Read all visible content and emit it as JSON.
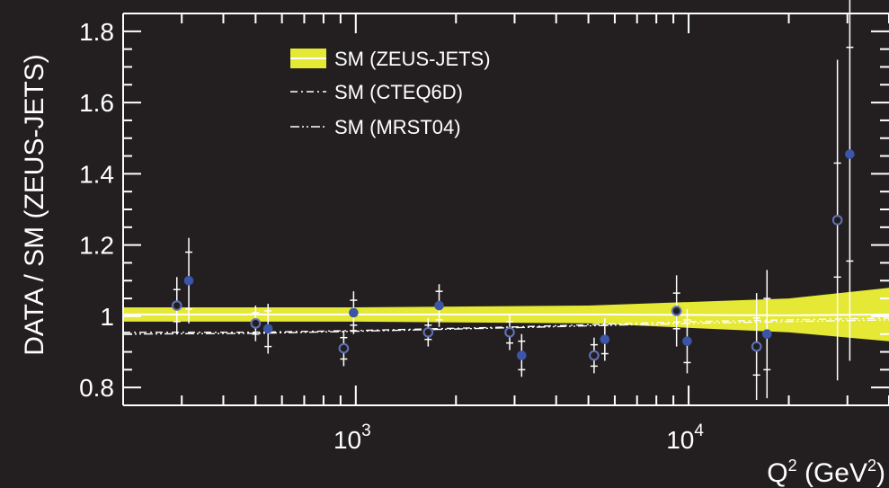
{
  "colors": {
    "background": "#231f20",
    "band": "#e5e834",
    "axes": "#ffffff",
    "filled_marker": "#3b55a8",
    "open_marker_edge": "#6272b8"
  },
  "chart_data": {
    "type": "scatter",
    "xlabel": {
      "base": "Q",
      "sup1": "2",
      "mid": " (GeV",
      "sup2": "2",
      "end": ")"
    },
    "ylabel": "DATA / SM (ZEUS-JETS)",
    "x_scale": "log",
    "xlim": [
      200,
      40000
    ],
    "ylim": [
      0.75,
      1.85
    ],
    "x_ticks": [
      {
        "value": 1000,
        "base": "10",
        "exp": "3"
      },
      {
        "value": 10000,
        "base": "10",
        "exp": "4"
      }
    ],
    "y_ticks": [
      {
        "value": 0.8,
        "label": "0.8"
      },
      {
        "value": 1.0,
        "label": "1"
      },
      {
        "value": 1.2,
        "label": "1.2"
      },
      {
        "value": 1.4,
        "label": "1.4"
      },
      {
        "value": 1.6,
        "label": "1.6"
      },
      {
        "value": 1.8,
        "label": "1.8"
      }
    ],
    "legend": {
      "position": "top-left",
      "entries": [
        {
          "label": "SM (ZEUS-JETS)",
          "style": "band"
        },
        {
          "label": "SM (CTEQ6D)",
          "style": "dash-dot"
        },
        {
          "label": "SM (MRST04)",
          "style": "dash-dot-dot"
        }
      ]
    },
    "band": {
      "x": [
        200,
        1000,
        5000,
        20000,
        40000
      ],
      "upper": [
        1.025,
        1.025,
        1.03,
        1.05,
        1.08
      ],
      "lower": [
        0.985,
        0.985,
        0.98,
        0.955,
        0.93
      ]
    },
    "lines": [
      {
        "style": "dash-dot",
        "x": [
          200,
          500,
          1000,
          3000,
          10000,
          40000
        ],
        "y": [
          0.955,
          0.955,
          0.96,
          0.97,
          0.985,
          0.995
        ]
      },
      {
        "style": "dash-dot-dot",
        "x": [
          200,
          500,
          1000,
          3000,
          10000,
          40000
        ],
        "y": [
          0.95,
          0.952,
          0.958,
          0.968,
          0.98,
          0.99
        ]
      }
    ],
    "series": [
      {
        "marker": "open",
        "points": [
          {
            "x": 290,
            "y": 1.03,
            "stat": 0.045,
            "tot": 0.08
          },
          {
            "x": 500,
            "y": 0.98,
            "stat": 0.03,
            "tot": 0.05
          },
          {
            "x": 920,
            "y": 0.91,
            "stat": 0.03,
            "tot": 0.05
          },
          {
            "x": 1650,
            "y": 0.955,
            "stat": 0.02,
            "tot": 0.04
          },
          {
            "x": 2900,
            "y": 0.955,
            "stat": 0.03,
            "tot": 0.05
          },
          {
            "x": 5200,
            "y": 0.89,
            "stat": 0.03,
            "tot": 0.05
          },
          {
            "x": 9200,
            "y": 1.015,
            "stat": 0.05,
            "tot": 0.1
          },
          {
            "x": 16000,
            "y": 0.915,
            "stat": 0.08,
            "tot": 0.15
          },
          {
            "x": 28000,
            "y": 1.27,
            "stat": 0.16,
            "tot": 0.45
          }
        ]
      },
      {
        "marker": "filled",
        "points": [
          {
            "x": 315,
            "y": 1.1,
            "stat": 0.08,
            "tot": 0.12
          },
          {
            "x": 545,
            "y": 0.965,
            "stat": 0.05,
            "tot": 0.07
          },
          {
            "x": 985,
            "y": 1.01,
            "stat": 0.035,
            "tot": 0.06
          },
          {
            "x": 1780,
            "y": 1.03,
            "stat": 0.04,
            "tot": 0.06
          },
          {
            "x": 3150,
            "y": 0.89,
            "stat": 0.04,
            "tot": 0.06
          },
          {
            "x": 5600,
            "y": 0.935,
            "stat": 0.04,
            "tot": 0.06
          },
          {
            "x": 9900,
            "y": 0.93,
            "stat": 0.06,
            "tot": 0.09
          },
          {
            "x": 17200,
            "y": 0.95,
            "stat": 0.1,
            "tot": 0.18
          },
          {
            "x": 30500,
            "y": 1.455,
            "stat": 0.3,
            "tot": 0.58
          }
        ]
      }
    ]
  }
}
